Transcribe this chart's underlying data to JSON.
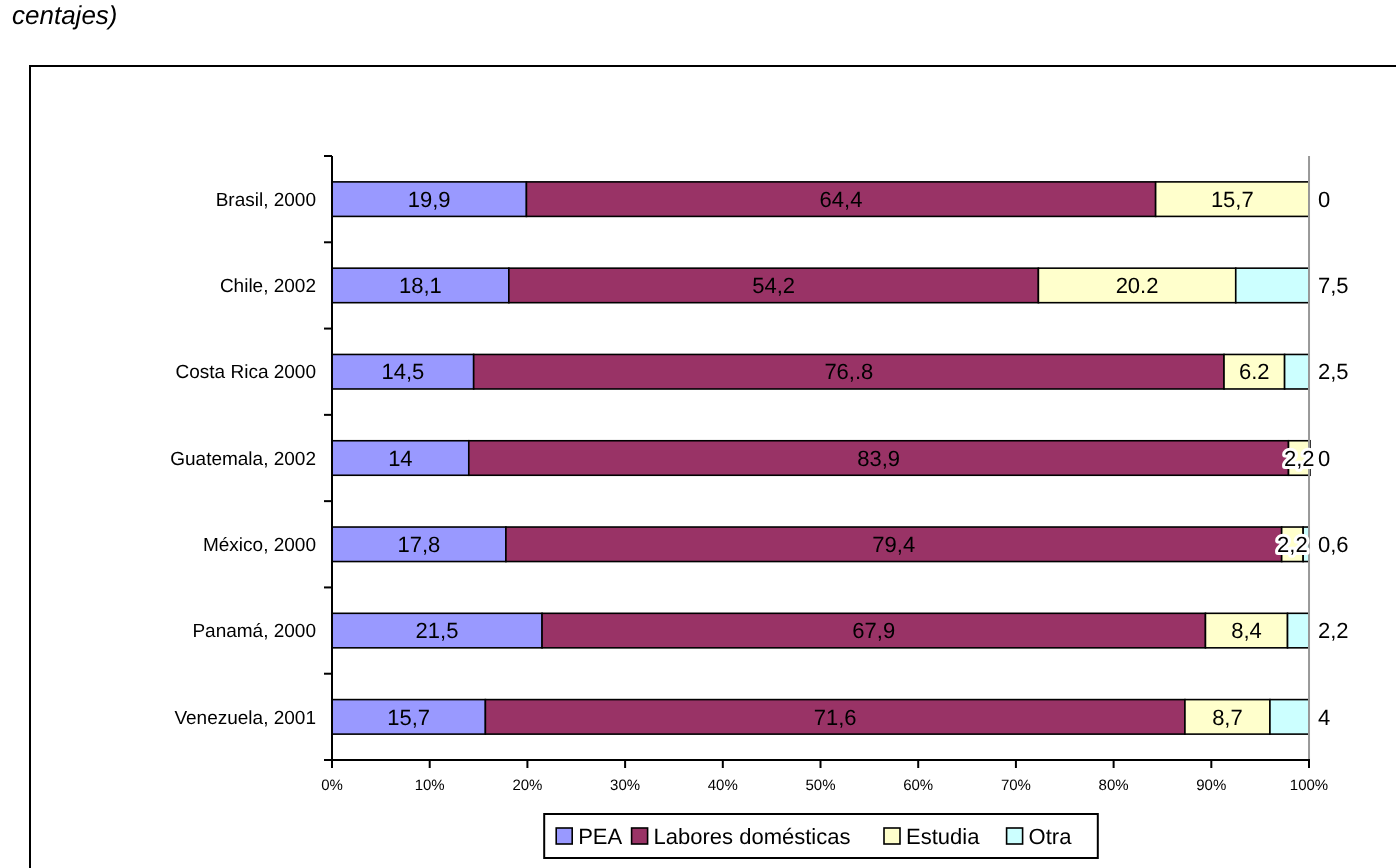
{
  "chart_data": {
    "type": "bar",
    "orientation": "horizontal",
    "stacked": true,
    "subtitle": "centajes)",
    "categories": [
      "Brasil, 2000",
      "Chile, 2002",
      "Costa Rica 2000",
      "Guatemala, 2002",
      "México, 2000",
      "Panamá, 2000",
      "Venezuela, 2001"
    ],
    "series": [
      {
        "name": "PEA",
        "color": "#9999ff",
        "values": [
          19.9,
          18.1,
          14.5,
          14,
          17.8,
          21.5,
          15.7
        ],
        "value_labels": [
          "19,9",
          "18,1",
          "14,5",
          "14",
          "17,8",
          "21,5",
          "15,7"
        ]
      },
      {
        "name": "Labores domésticas",
        "color": "#993366",
        "values": [
          64.4,
          54.2,
          76.8,
          83.9,
          79.4,
          67.9,
          71.6
        ],
        "value_labels": [
          "64,4",
          "54,2",
          "76,.8",
          "83,9",
          "79,4",
          "67,9",
          "71,6"
        ]
      },
      {
        "name": "Estudia",
        "color": "#ffffcc",
        "values": [
          15.7,
          20.2,
          6.2,
          2.2,
          2.2,
          8.4,
          8.7
        ],
        "value_labels": [
          "15,7",
          "20.2",
          "6.2",
          "2,2",
          "2,2",
          "8,4",
          "8,7"
        ]
      },
      {
        "name": "Otra",
        "color": "#ccffff",
        "values": [
          0,
          7.5,
          2.5,
          0,
          0.6,
          2.2,
          4
        ],
        "value_labels": [
          "0",
          "7,5",
          "2,5",
          "0",
          "0,6",
          "2,2",
          "4"
        ]
      }
    ],
    "xlim": [
      0,
      100.1
    ],
    "xticks": [
      {
        "value": 0,
        "label": "0%"
      },
      {
        "value": 10,
        "label": "10%"
      },
      {
        "value": 20,
        "label": "20%"
      },
      {
        "value": 30,
        "label": "30%"
      },
      {
        "value": 40,
        "label": "40%"
      },
      {
        "value": 50,
        "label": "50%"
      },
      {
        "value": 60,
        "label": "60%"
      },
      {
        "value": 70,
        "label": "70%"
      },
      {
        "value": 80,
        "label": "80%"
      },
      {
        "value": 90,
        "label": "90%"
      },
      {
        "value": 100,
        "label": "100%"
      }
    ],
    "grid": false,
    "legend": "bottom"
  }
}
